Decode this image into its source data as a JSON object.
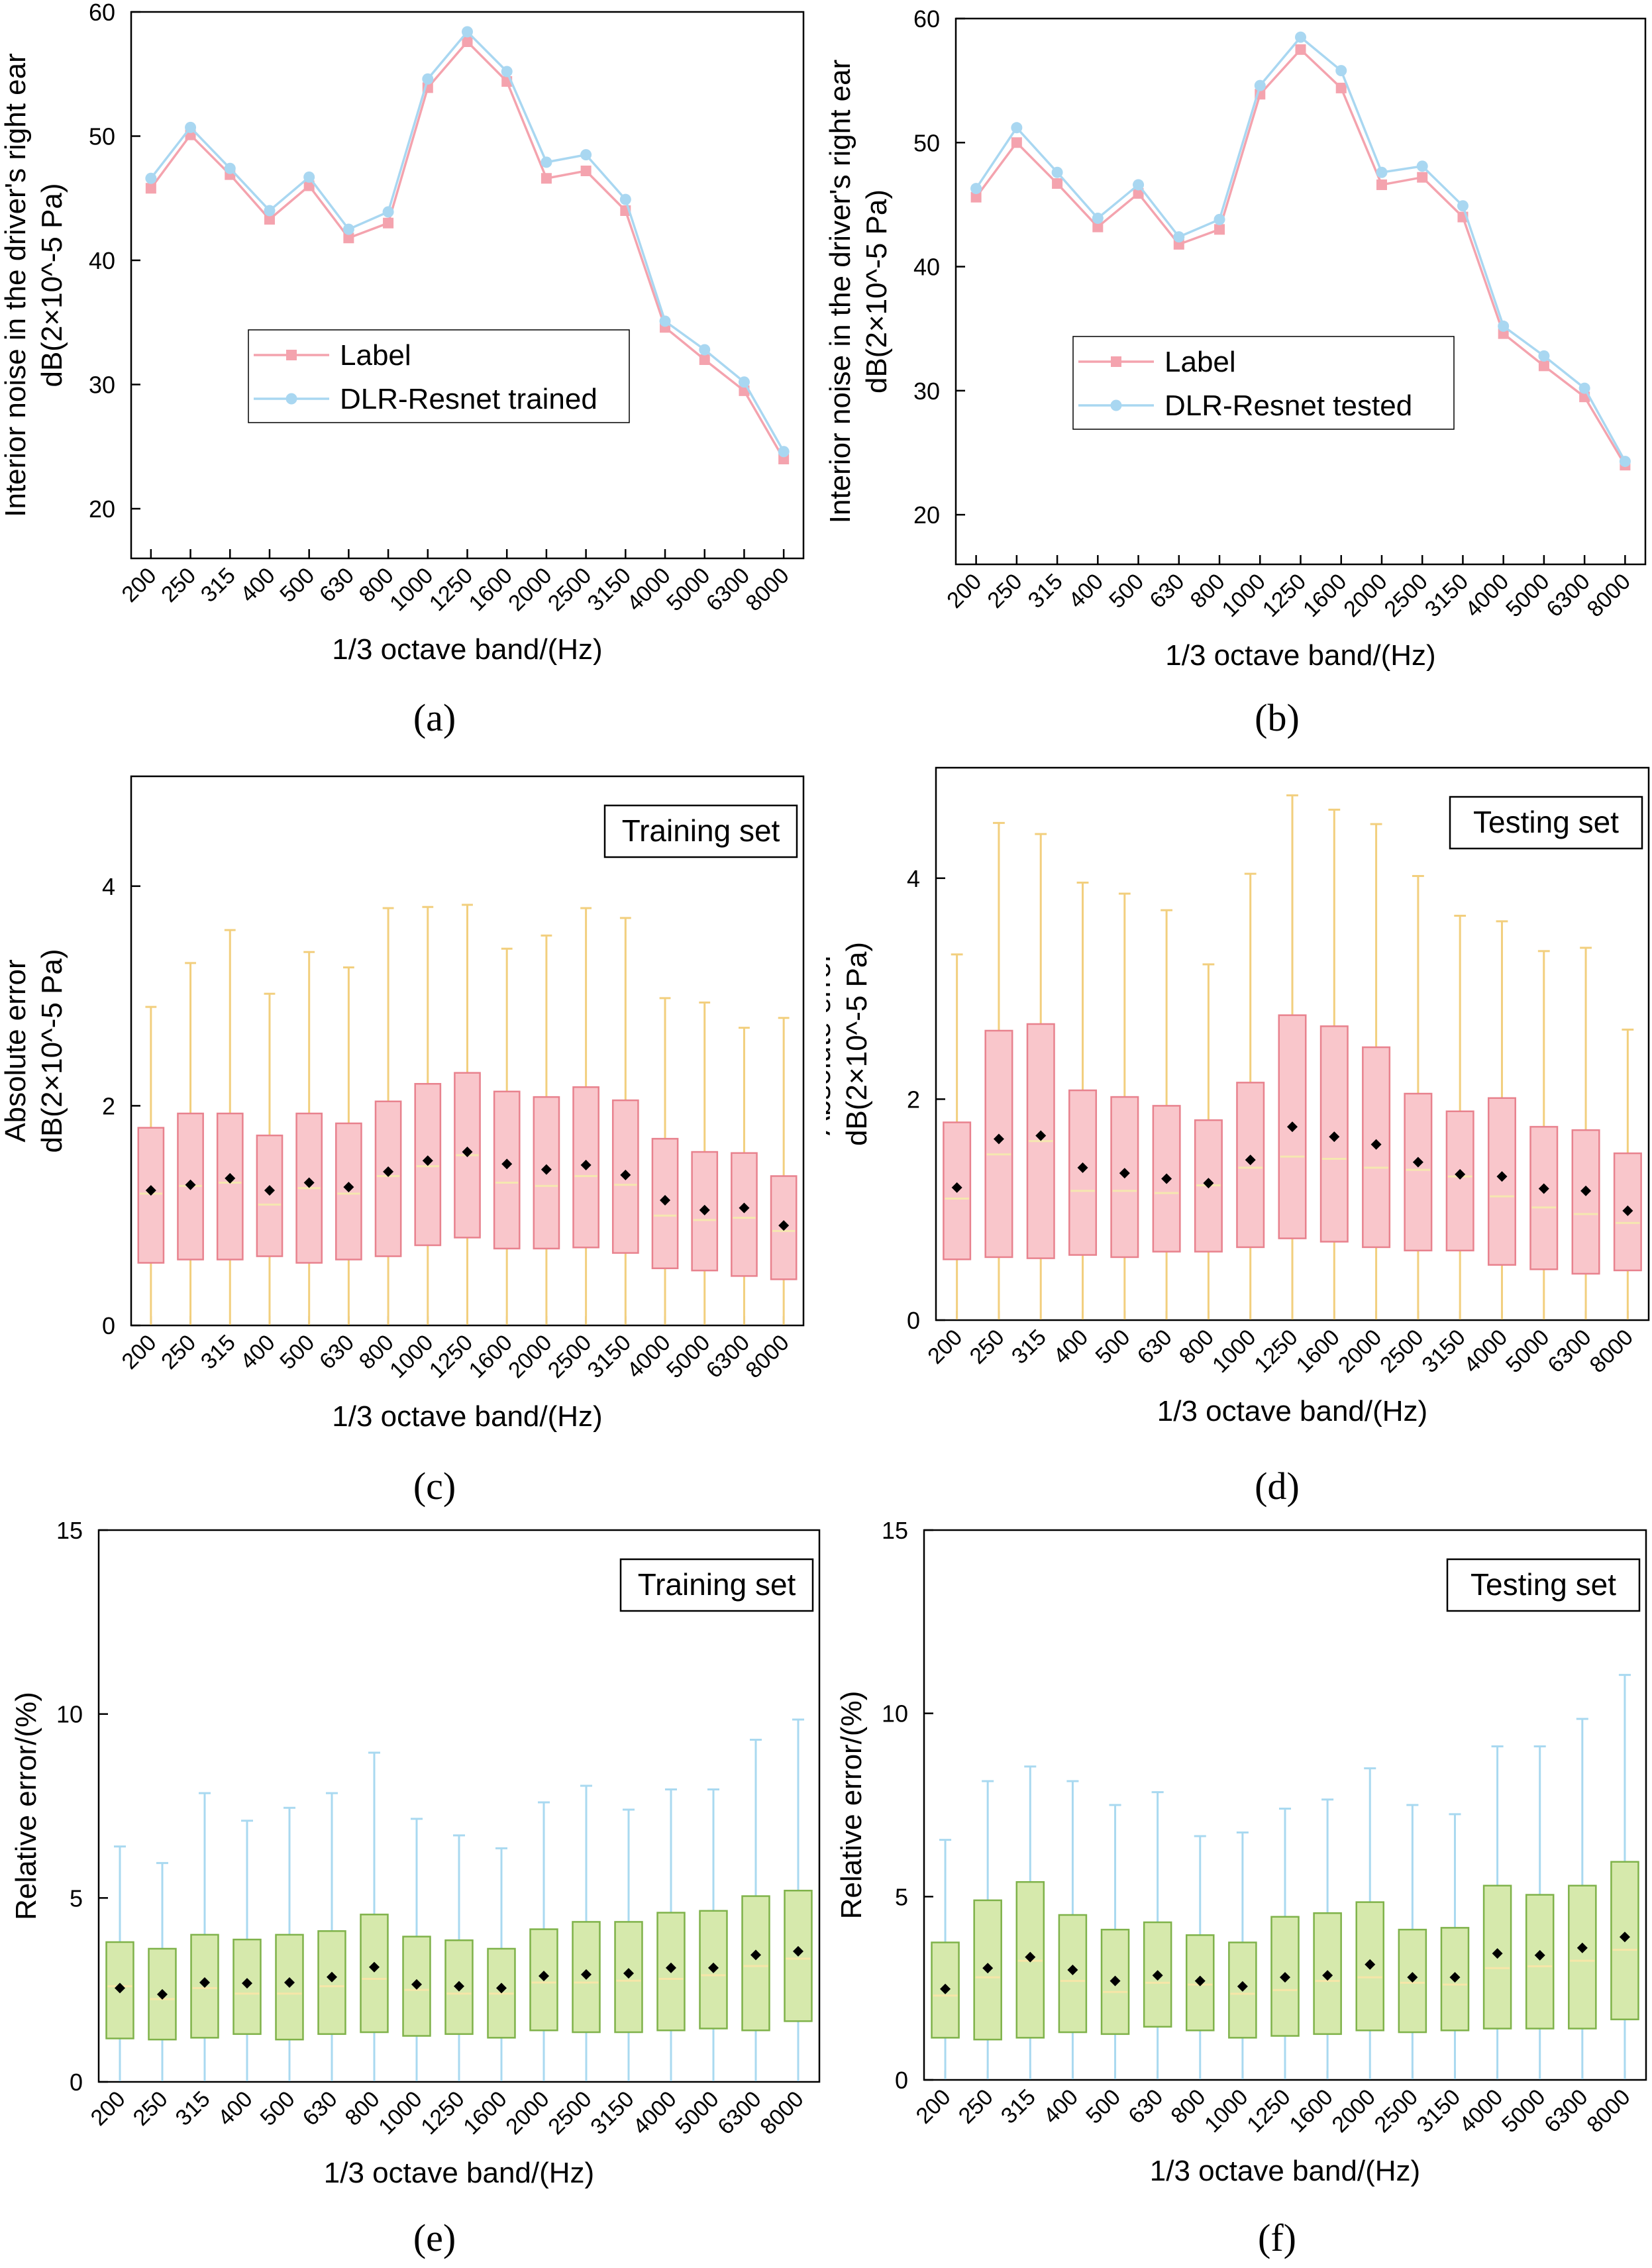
{
  "figure": {
    "bands": [
      "200",
      "250",
      "315",
      "400",
      "500",
      "630",
      "800",
      "1000",
      "1250",
      "1600",
      "2000",
      "2500",
      "3150",
      "4000",
      "5000",
      "6300",
      "8000"
    ]
  },
  "colors": {
    "label_line": "#f4a3ae",
    "label_marker": "#f4a3ae",
    "pred_line": "#a9d7f1",
    "pred_marker": "#a9d7f1",
    "abs_box_fill": "#f9c6cb",
    "abs_box_edge": "#e8828e",
    "abs_whisker": "#f2cf7e",
    "abs_median": "#f5e7b0",
    "rel_box_fill": "#d6e9ac",
    "rel_box_edge": "#7fb24a",
    "rel_whisker": "#a9d9f0",
    "rel_median": "#f6e6a8",
    "mean_marker": "#000000"
  },
  "chart_data": [
    {
      "id": "a",
      "caption": "(a)",
      "type": "line",
      "categories": [
        "200",
        "250",
        "315",
        "400",
        "500",
        "630",
        "800",
        "1000",
        "1250",
        "1600",
        "2000",
        "2500",
        "3150",
        "4000",
        "5000",
        "6300",
        "8000"
      ],
      "series": [
        {
          "name": "Label",
          "values": [
            45.8,
            50.1,
            46.9,
            43.3,
            46.0,
            41.8,
            43.0,
            53.9,
            57.6,
            54.4,
            46.6,
            47.2,
            44.0,
            34.6,
            32.0,
            29.5,
            24.0
          ]
        },
        {
          "name": "DLR-Resnet trained",
          "values": [
            46.6,
            50.7,
            47.4,
            44.0,
            46.7,
            42.5,
            43.9,
            54.6,
            58.4,
            55.2,
            47.9,
            48.5,
            44.9,
            35.1,
            32.8,
            30.2,
            24.6
          ]
        }
      ],
      "title": "",
      "xlabel": "1/3 octave band/(Hz)",
      "ylabel_line1": "Interior noise in the driver's right ear",
      "ylabel_line2": "dB(2×10^-5 Pa)",
      "ylim": [
        16,
        60
      ],
      "yticks": [
        "20",
        "30",
        "40",
        "50",
        "60"
      ],
      "legend": "center-left"
    },
    {
      "id": "b",
      "caption": "(b)",
      "type": "line",
      "categories": [
        "200",
        "250",
        "315",
        "400",
        "500",
        "630",
        "800",
        "1000",
        "1250",
        "1600",
        "2000",
        "2500",
        "3150",
        "4000",
        "5000",
        "6300",
        "8000"
      ],
      "series": [
        {
          "name": "Label",
          "values": [
            45.6,
            50.0,
            46.7,
            43.2,
            45.9,
            41.8,
            43.0,
            53.9,
            57.5,
            54.4,
            46.6,
            47.2,
            44.0,
            34.6,
            32.0,
            29.5,
            24.0
          ]
        },
        {
          "name": "DLR-Resnet tested",
          "values": [
            46.3,
            51.2,
            47.6,
            43.9,
            46.6,
            42.4,
            43.8,
            54.6,
            58.5,
            55.8,
            47.6,
            48.1,
            44.9,
            35.2,
            32.8,
            30.2,
            24.3
          ]
        }
      ],
      "title": "",
      "xlabel": "1/3 octave band/(Hz)",
      "ylabel_line1": "Interior noise in the driver's right ear",
      "ylabel_line2": "dB(2×10^-5 Pa)",
      "ylim": [
        16,
        60
      ],
      "yticks": [
        "20",
        "30",
        "40",
        "50",
        "60"
      ],
      "legend": "center-left"
    },
    {
      "id": "c",
      "caption": "(c)",
      "type": "box",
      "annotation": "Training set",
      "categories": [
        "200",
        "250",
        "315",
        "400",
        "500",
        "630",
        "800",
        "1000",
        "1250",
        "1600",
        "2000",
        "2500",
        "3150",
        "4000",
        "5000",
        "6300",
        "8000"
      ],
      "boxes": [
        {
          "q1": 0.57,
          "q3": 1.8,
          "median": 1.2,
          "mean": 1.23,
          "max": 2.9
        },
        {
          "q1": 0.6,
          "q3": 1.93,
          "median": 1.27,
          "mean": 1.28,
          "max": 3.3
        },
        {
          "q1": 0.6,
          "q3": 1.93,
          "median": 1.3,
          "mean": 1.34,
          "max": 3.6
        },
        {
          "q1": 0.63,
          "q3": 1.73,
          "median": 1.1,
          "mean": 1.23,
          "max": 3.02
        },
        {
          "q1": 0.57,
          "q3": 1.93,
          "median": 1.25,
          "mean": 1.3,
          "max": 3.4
        },
        {
          "q1": 0.6,
          "q3": 1.84,
          "median": 1.2,
          "mean": 1.26,
          "max": 3.26
        },
        {
          "q1": 0.63,
          "q3": 2.04,
          "median": 1.36,
          "mean": 1.4,
          "max": 3.8
        },
        {
          "q1": 0.73,
          "q3": 2.2,
          "median": 1.45,
          "mean": 1.5,
          "max": 3.81
        },
        {
          "q1": 0.8,
          "q3": 2.3,
          "median": 1.55,
          "mean": 1.58,
          "max": 3.83
        },
        {
          "q1": 0.7,
          "q3": 2.13,
          "median": 1.3,
          "mean": 1.47,
          "max": 3.43
        },
        {
          "q1": 0.7,
          "q3": 2.08,
          "median": 1.27,
          "mean": 1.42,
          "max": 3.55
        },
        {
          "q1": 0.71,
          "q3": 2.17,
          "median": 1.36,
          "mean": 1.46,
          "max": 3.8
        },
        {
          "q1": 0.66,
          "q3": 2.05,
          "median": 1.28,
          "mean": 1.37,
          "max": 3.71
        },
        {
          "q1": 0.52,
          "q3": 1.7,
          "median": 1.0,
          "mean": 1.14,
          "max": 2.98
        },
        {
          "q1": 0.5,
          "q3": 1.58,
          "median": 0.96,
          "mean": 1.05,
          "max": 2.94
        },
        {
          "q1": 0.45,
          "q3": 1.57,
          "median": 0.98,
          "mean": 1.07,
          "max": 2.71
        },
        {
          "q1": 0.42,
          "q3": 1.36,
          "median": 0.86,
          "mean": 0.91,
          "max": 2.8
        }
      ],
      "xlabel": "1/3 octave band/(Hz)",
      "ylabel_line1": "Absolute error",
      "ylabel_line2": "dB(2×10^-5 Pa)",
      "ylim": [
        0,
        5
      ],
      "yticks": [
        "0",
        "2",
        "4"
      ]
    },
    {
      "id": "d",
      "caption": "(d)",
      "type": "box",
      "annotation": "Testing set",
      "categories": [
        "200",
        "250",
        "315",
        "400",
        "500",
        "630",
        "800",
        "1000",
        "1250",
        "1600",
        "2000",
        "2500",
        "3150",
        "4000",
        "5000",
        "6300",
        "8000"
      ],
      "boxes": [
        {
          "q1": 0.55,
          "q3": 1.79,
          "median": 1.1,
          "mean": 1.2,
          "max": 3.31
        },
        {
          "q1": 0.57,
          "q3": 2.62,
          "median": 1.5,
          "mean": 1.64,
          "max": 4.5
        },
        {
          "q1": 0.56,
          "q3": 2.68,
          "median": 1.62,
          "mean": 1.67,
          "max": 4.4
        },
        {
          "q1": 0.59,
          "q3": 2.08,
          "median": 1.17,
          "mean": 1.38,
          "max": 3.96
        },
        {
          "q1": 0.57,
          "q3": 2.02,
          "median": 1.17,
          "mean": 1.33,
          "max": 3.86
        },
        {
          "q1": 0.62,
          "q3": 1.94,
          "median": 1.15,
          "mean": 1.28,
          "max": 3.71
        },
        {
          "q1": 0.62,
          "q3": 1.81,
          "median": 1.22,
          "mean": 1.24,
          "max": 3.22
        },
        {
          "q1": 0.66,
          "q3": 2.15,
          "median": 1.38,
          "mean": 1.45,
          "max": 4.04
        },
        {
          "q1": 0.74,
          "q3": 2.76,
          "median": 1.48,
          "mean": 1.75,
          "max": 4.75
        },
        {
          "q1": 0.71,
          "q3": 2.66,
          "median": 1.46,
          "mean": 1.66,
          "max": 4.62
        },
        {
          "q1": 0.66,
          "q3": 2.47,
          "median": 1.38,
          "mean": 1.59,
          "max": 4.49
        },
        {
          "q1": 0.63,
          "q3": 2.05,
          "median": 1.36,
          "mean": 1.43,
          "max": 4.02
        },
        {
          "q1": 0.63,
          "q3": 1.89,
          "median": 1.3,
          "mean": 1.32,
          "max": 3.66
        },
        {
          "q1": 0.5,
          "q3": 2.01,
          "median": 1.12,
          "mean": 1.3,
          "max": 3.61
        },
        {
          "q1": 0.46,
          "q3": 1.75,
          "median": 1.02,
          "mean": 1.19,
          "max": 3.34
        },
        {
          "q1": 0.42,
          "q3": 1.72,
          "median": 0.96,
          "mean": 1.17,
          "max": 3.37
        },
        {
          "q1": 0.45,
          "q3": 1.51,
          "median": 0.88,
          "mean": 0.99,
          "max": 2.63
        }
      ],
      "xlabel": "1/3 octave band/(Hz)",
      "ylabel_line1": "Absolute error",
      "ylabel_line2": "dB(2×10^-5 Pa)",
      "ylim": [
        0,
        5
      ],
      "yticks": [
        "0",
        "2",
        "4"
      ]
    },
    {
      "id": "e",
      "caption": "(e)",
      "type": "box",
      "annotation": "Training set",
      "categories": [
        "200",
        "250",
        "315",
        "400",
        "500",
        "630",
        "800",
        "1000",
        "1250",
        "1600",
        "2000",
        "2500",
        "3150",
        "4000",
        "5000",
        "6300",
        "8000"
      ],
      "boxes": [
        {
          "q1": 1.18,
          "q3": 3.8,
          "median": 2.6,
          "mean": 2.55,
          "max": 6.4
        },
        {
          "q1": 1.15,
          "q3": 3.62,
          "median": 2.25,
          "mean": 2.38,
          "max": 5.95
        },
        {
          "q1": 1.2,
          "q3": 4.0,
          "median": 2.55,
          "mean": 2.7,
          "max": 7.85
        },
        {
          "q1": 1.3,
          "q3": 3.87,
          "median": 2.4,
          "mean": 2.68,
          "max": 7.1
        },
        {
          "q1": 1.15,
          "q3": 4.0,
          "median": 2.4,
          "mean": 2.7,
          "max": 7.45
        },
        {
          "q1": 1.3,
          "q3": 4.1,
          "median": 2.6,
          "mean": 2.85,
          "max": 7.85
        },
        {
          "q1": 1.35,
          "q3": 4.55,
          "median": 2.8,
          "mean": 3.12,
          "max": 8.95
        },
        {
          "q1": 1.25,
          "q3": 3.95,
          "median": 2.5,
          "mean": 2.65,
          "max": 7.15
        },
        {
          "q1": 1.3,
          "q3": 3.85,
          "median": 2.4,
          "mean": 2.6,
          "max": 6.7
        },
        {
          "q1": 1.2,
          "q3": 3.62,
          "median": 2.4,
          "mean": 2.55,
          "max": 6.35
        },
        {
          "q1": 1.4,
          "q3": 4.15,
          "median": 2.7,
          "mean": 2.88,
          "max": 7.6
        },
        {
          "q1": 1.35,
          "q3": 4.35,
          "median": 2.7,
          "mean": 2.92,
          "max": 8.05
        },
        {
          "q1": 1.35,
          "q3": 4.35,
          "median": 2.75,
          "mean": 2.95,
          "max": 7.4
        },
        {
          "q1": 1.4,
          "q3": 4.6,
          "median": 2.8,
          "mean": 3.1,
          "max": 7.95
        },
        {
          "q1": 1.45,
          "q3": 4.65,
          "median": 2.9,
          "mean": 3.1,
          "max": 7.95
        },
        {
          "q1": 1.4,
          "q3": 5.05,
          "median": 3.15,
          "mean": 3.45,
          "max": 9.3
        },
        {
          "q1": 1.65,
          "q3": 5.2,
          "median": 3.35,
          "mean": 3.55,
          "max": 9.85
        }
      ],
      "xlabel": "1/3 octave band/(Hz)",
      "ylabel": "Relative error/(%)",
      "ylim": [
        0,
        15
      ],
      "yticks": [
        "0",
        "5",
        "10",
        "15"
      ]
    },
    {
      "id": "f",
      "caption": "(f)",
      "type": "box",
      "annotation": "Testing set",
      "categories": [
        "200",
        "250",
        "315",
        "400",
        "500",
        "630",
        "800",
        "1000",
        "1250",
        "1600",
        "2000",
        "2500",
        "3150",
        "4000",
        "5000",
        "6300",
        "8000"
      ],
      "boxes": [
        {
          "q1": 1.15,
          "q3": 3.75,
          "median": 2.3,
          "mean": 2.48,
          "max": 6.55
        },
        {
          "q1": 1.1,
          "q3": 4.9,
          "median": 2.8,
          "mean": 3.05,
          "max": 8.15
        },
        {
          "q1": 1.15,
          "q3": 5.4,
          "median": 3.25,
          "mean": 3.35,
          "max": 8.55
        },
        {
          "q1": 1.3,
          "q3": 4.5,
          "median": 2.7,
          "mean": 3.0,
          "max": 8.15
        },
        {
          "q1": 1.25,
          "q3": 4.1,
          "median": 2.4,
          "mean": 2.7,
          "max": 7.5
        },
        {
          "q1": 1.45,
          "q3": 4.3,
          "median": 2.65,
          "mean": 2.85,
          "max": 7.85
        },
        {
          "q1": 1.35,
          "q3": 3.95,
          "median": 2.6,
          "mean": 2.7,
          "max": 6.65
        },
        {
          "q1": 1.15,
          "q3": 3.75,
          "median": 2.35,
          "mean": 2.55,
          "max": 6.75
        },
        {
          "q1": 1.2,
          "q3": 4.45,
          "median": 2.45,
          "mean": 2.8,
          "max": 7.4
        },
        {
          "q1": 1.25,
          "q3": 4.55,
          "median": 2.7,
          "mean": 2.85,
          "max": 7.65
        },
        {
          "q1": 1.35,
          "q3": 4.85,
          "median": 2.8,
          "mean": 3.15,
          "max": 8.5
        },
        {
          "q1": 1.3,
          "q3": 4.1,
          "median": 2.65,
          "mean": 2.8,
          "max": 7.5
        },
        {
          "q1": 1.35,
          "q3": 4.15,
          "median": 2.6,
          "mean": 2.8,
          "max": 7.25
        },
        {
          "q1": 1.4,
          "q3": 5.3,
          "median": 3.05,
          "mean": 3.45,
          "max": 9.1
        },
        {
          "q1": 1.4,
          "q3": 5.05,
          "median": 3.1,
          "mean": 3.4,
          "max": 9.1
        },
        {
          "q1": 1.4,
          "q3": 5.3,
          "median": 3.25,
          "mean": 3.6,
          "max": 9.85
        },
        {
          "q1": 1.65,
          "q3": 5.95,
          "median": 3.55,
          "mean": 3.9,
          "max": 11.05
        }
      ],
      "xlabel": "1/3 octave band/(Hz)",
      "ylabel": "Relative error/(%)",
      "ylim": [
        0,
        15
      ],
      "yticks": [
        "0",
        "5",
        "10",
        "15"
      ]
    }
  ]
}
